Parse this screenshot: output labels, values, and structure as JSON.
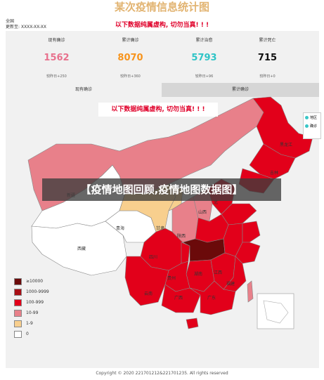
{
  "title": "某次疫情信息统计图",
  "meta": {
    "scope": "全国",
    "update_label": "更新至:",
    "update_value": "XXXX-XX-XX"
  },
  "warning_text": "以下数据纯属虚构, 切勿当真! ! !",
  "stats": [
    {
      "label": "现有确诊",
      "value": "1562",
      "sub": "较昨日+250",
      "color": "#e8718d"
    },
    {
      "label": "累计确诊",
      "value": "8070",
      "sub": "较昨日+360",
      "color": "#f7941d"
    },
    {
      "label": "累计治愈",
      "value": "5793",
      "sub": "较昨日+96",
      "color": "#2ec4c6"
    },
    {
      "label": "累计死亡",
      "value": "715",
      "sub": "较昨日+0",
      "color": "#111111"
    }
  ],
  "tabs": {
    "active": "现有确诊",
    "inactive": "累计确诊"
  },
  "overlay_title": "【疫情地图回顾,疫情地图数据图】",
  "map_legend": [
    "地区",
    "确诊"
  ],
  "legend": [
    {
      "label": "≥10000",
      "color": "#6b0a0a"
    },
    {
      "label": "1000-9999",
      "color": "#a80f16"
    },
    {
      "label": "100-999",
      "color": "#e2001a"
    },
    {
      "label": "10-99",
      "color": "#e8808a"
    },
    {
      "label": "1-9",
      "color": "#f8cf8e"
    },
    {
      "label": "0",
      "color": "#ffffff"
    }
  ],
  "provinces": {
    "heilongjiang": "黑龙江",
    "jilin": "吉林",
    "qinghai": "青海",
    "xizang": "西藏",
    "gansu": "甘肃",
    "sichuan": "四川",
    "yunnan": "云南",
    "guizhou": "贵州",
    "hunan": "湖南",
    "jiangxi": "江西",
    "fujian": "福建",
    "guangxi": "广西",
    "guangdong": "广东",
    "shanxi": "山西",
    "shaanxi": "陕西",
    "xinjiang": "新疆",
    "beijing": "北"
  },
  "footer": "Copyright © 2020 221701212&221701235. All rights reserved"
}
